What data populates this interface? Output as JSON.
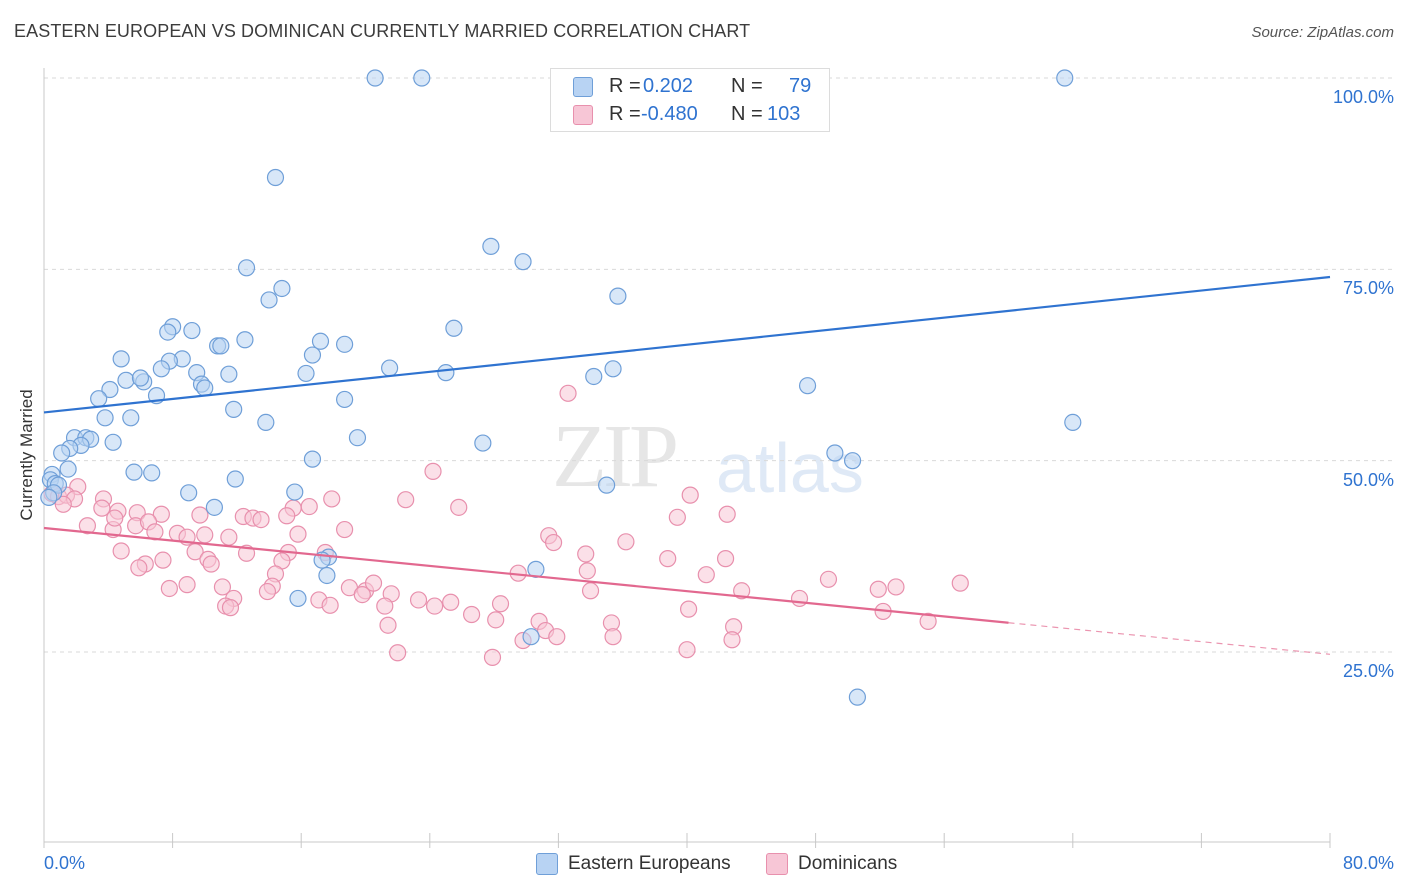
{
  "title": "EASTERN EUROPEAN VS DOMINICAN CURRENTLY MARRIED CORRELATION CHART",
  "source": "Source: ZipAtlas.com",
  "watermark": {
    "zip": "ZIP",
    "atlas": "atlas"
  },
  "legend_box": {
    "rows": [
      {
        "r_label": "R =",
        "r_value": "0.202",
        "n_label": "N =",
        "n_value": "79"
      },
      {
        "r_label": "R =",
        "r_value": "-0.480",
        "n_label": "N =",
        "n_value": "103"
      }
    ]
  },
  "colors": {
    "blue_fill": "#b8d3f3",
    "blue_stroke": "#6f9fd8",
    "blue_line": "#2f73d0",
    "pink_fill": "#f7c6d6",
    "pink_stroke": "#e890ad",
    "pink_line": "#e2688f",
    "grid": "#d9d9d9",
    "label_blue": "#2f73d0"
  },
  "chart_data": {
    "type": "scatter",
    "title": "EASTERN EUROPEAN VS DOMINICAN CURRENTLY MARRIED CORRELATION CHART",
    "xlabel": "",
    "ylabel": "Currently Married",
    "xlim": [
      0,
      80
    ],
    "ylim": [
      0,
      105
    ],
    "x_tick_labels": [
      "0.0%",
      "80.0%"
    ],
    "y_ticks": [
      25,
      50,
      75,
      100
    ],
    "y_tick_labels": [
      "25.0%",
      "50.0%",
      "75.0%",
      "100.0%"
    ],
    "grid": true,
    "legend_position": "bottom",
    "series": [
      {
        "name": "Eastern Europeans",
        "r": 0.202,
        "n": 79,
        "trend": {
          "x": [
            0,
            80
          ],
          "y": [
            56.3,
            74.0
          ],
          "solid_until": 80
        },
        "points": [
          [
            20.6,
            100
          ],
          [
            23.5,
            100
          ],
          [
            63.5,
            100
          ],
          [
            14.4,
            87.0
          ],
          [
            27.8,
            78.0
          ],
          [
            29.8,
            76.0
          ],
          [
            12.6,
            75.2
          ],
          [
            14.8,
            72.5
          ],
          [
            14.0,
            71.0
          ],
          [
            35.7,
            71.5
          ],
          [
            8.0,
            67.5
          ],
          [
            7.7,
            66.8
          ],
          [
            9.2,
            67.0
          ],
          [
            25.5,
            67.3
          ],
          [
            12.5,
            65.8
          ],
          [
            17.2,
            65.6
          ],
          [
            18.7,
            65.2
          ],
          [
            10.8,
            65.0
          ],
          [
            11.0,
            65.0
          ],
          [
            16.7,
            63.8
          ],
          [
            8.6,
            63.3
          ],
          [
            7.8,
            63.0
          ],
          [
            4.8,
            63.3
          ],
          [
            7.3,
            62.0
          ],
          [
            21.5,
            62.1
          ],
          [
            35.4,
            62.0
          ],
          [
            9.5,
            61.5
          ],
          [
            11.5,
            61.3
          ],
          [
            16.3,
            61.4
          ],
          [
            25.0,
            61.5
          ],
          [
            34.2,
            61.0
          ],
          [
            5.1,
            60.5
          ],
          [
            6.2,
            60.3
          ],
          [
            6.0,
            60.8
          ],
          [
            9.8,
            60.0
          ],
          [
            10.0,
            59.5
          ],
          [
            4.1,
            59.3
          ],
          [
            3.4,
            58.1
          ],
          [
            7.0,
            58.5
          ],
          [
            18.7,
            58.0
          ],
          [
            47.5,
            59.8
          ],
          [
            11.8,
            56.7
          ],
          [
            3.8,
            55.6
          ],
          [
            5.4,
            55.6
          ],
          [
            13.8,
            55.0
          ],
          [
            64.0,
            55.0
          ],
          [
            1.9,
            53.0
          ],
          [
            2.6,
            53.0
          ],
          [
            2.9,
            52.8
          ],
          [
            4.3,
            52.4
          ],
          [
            19.5,
            53.0
          ],
          [
            27.3,
            52.3
          ],
          [
            2.3,
            52.0
          ],
          [
            1.6,
            51.6
          ],
          [
            1.1,
            51.0
          ],
          [
            49.2,
            51.0
          ],
          [
            16.7,
            50.2
          ],
          [
            50.3,
            50.0
          ],
          [
            5.6,
            48.5
          ],
          [
            6.7,
            48.4
          ],
          [
            1.5,
            48.9
          ],
          [
            11.9,
            47.6
          ],
          [
            0.5,
            48.2
          ],
          [
            0.4,
            47.5
          ],
          [
            0.7,
            47.0
          ],
          [
            0.9,
            46.8
          ],
          [
            0.6,
            45.8
          ],
          [
            0.3,
            45.2
          ],
          [
            9.0,
            45.8
          ],
          [
            15.6,
            45.9
          ],
          [
            35.0,
            46.8
          ],
          [
            10.6,
            43.9
          ],
          [
            17.7,
            37.4
          ],
          [
            17.6,
            35.0
          ],
          [
            30.6,
            35.8
          ],
          [
            15.8,
            32.0
          ],
          [
            30.3,
            27.0
          ],
          [
            50.6,
            19.1
          ],
          [
            17.3,
            37.0
          ]
        ]
      },
      {
        "name": "Dominicans",
        "r": -0.48,
        "n": 103,
        "trend": {
          "x": [
            0,
            80
          ],
          "y": [
            41.2,
            24.7
          ],
          "solid_until": 60
        },
        "points": [
          [
            32.6,
            58.8
          ],
          [
            24.2,
            48.6
          ],
          [
            2.1,
            46.6
          ],
          [
            0.5,
            45.7
          ],
          [
            0.9,
            45.3
          ],
          [
            1.4,
            45.5
          ],
          [
            1.9,
            45.0
          ],
          [
            3.7,
            45.0
          ],
          [
            1.2,
            44.3
          ],
          [
            17.9,
            45.0
          ],
          [
            22.5,
            44.9
          ],
          [
            16.5,
            44.0
          ],
          [
            15.5,
            43.8
          ],
          [
            3.6,
            43.8
          ],
          [
            4.6,
            43.4
          ],
          [
            5.8,
            43.2
          ],
          [
            7.3,
            43.0
          ],
          [
            9.7,
            42.9
          ],
          [
            12.4,
            42.7
          ],
          [
            13.0,
            42.5
          ],
          [
            13.5,
            42.3
          ],
          [
            15.1,
            42.8
          ],
          [
            25.8,
            43.9
          ],
          [
            39.4,
            42.6
          ],
          [
            2.7,
            41.5
          ],
          [
            4.3,
            41.0
          ],
          [
            5.7,
            41.5
          ],
          [
            6.5,
            42.0
          ],
          [
            6.9,
            40.7
          ],
          [
            8.3,
            40.5
          ],
          [
            8.9,
            40.0
          ],
          [
            10.0,
            40.3
          ],
          [
            11.5,
            40.0
          ],
          [
            15.8,
            40.4
          ],
          [
            18.7,
            41.0
          ],
          [
            31.4,
            40.2
          ],
          [
            31.7,
            39.3
          ],
          [
            36.2,
            39.4
          ],
          [
            4.8,
            38.2
          ],
          [
            9.4,
            38.1
          ],
          [
            12.6,
            37.9
          ],
          [
            15.2,
            38.0
          ],
          [
            17.5,
            38.0
          ],
          [
            33.7,
            37.8
          ],
          [
            38.8,
            37.2
          ],
          [
            42.4,
            37.2
          ],
          [
            7.4,
            37.0
          ],
          [
            10.2,
            37.1
          ],
          [
            6.3,
            36.5
          ],
          [
            10.4,
            36.5
          ],
          [
            5.9,
            36.0
          ],
          [
            14.8,
            36.9
          ],
          [
            33.8,
            35.6
          ],
          [
            29.5,
            35.3
          ],
          [
            41.2,
            35.1
          ],
          [
            14.4,
            35.2
          ],
          [
            14.2,
            33.6
          ],
          [
            8.9,
            33.8
          ],
          [
            7.8,
            33.3
          ],
          [
            11.1,
            33.5
          ],
          [
            13.9,
            32.9
          ],
          [
            19.0,
            33.4
          ],
          [
            20.0,
            33.0
          ],
          [
            20.5,
            34.0
          ],
          [
            19.8,
            32.5
          ],
          [
            21.6,
            32.6
          ],
          [
            34.0,
            33.0
          ],
          [
            43.4,
            33.0
          ],
          [
            48.8,
            34.5
          ],
          [
            51.9,
            33.2
          ],
          [
            53.0,
            33.5
          ],
          [
            57.0,
            34.0
          ],
          [
            11.8,
            32.0
          ],
          [
            17.1,
            31.8
          ],
          [
            23.3,
            31.8
          ],
          [
            25.3,
            31.5
          ],
          [
            28.4,
            31.3
          ],
          [
            17.8,
            31.1
          ],
          [
            21.2,
            31.0
          ],
          [
            11.3,
            31.0
          ],
          [
            11.6,
            30.8
          ],
          [
            24.3,
            31.0
          ],
          [
            40.1,
            30.6
          ],
          [
            52.2,
            30.3
          ],
          [
            26.6,
            29.9
          ],
          [
            28.1,
            29.2
          ],
          [
            30.8,
            29.0
          ],
          [
            35.3,
            28.8
          ],
          [
            42.9,
            28.3
          ],
          [
            21.4,
            28.5
          ],
          [
            31.2,
            27.8
          ],
          [
            35.4,
            27.0
          ],
          [
            31.9,
            27.0
          ],
          [
            29.8,
            26.5
          ],
          [
            42.8,
            26.6
          ],
          [
            40.0,
            25.3
          ],
          [
            22.0,
            24.9
          ],
          [
            27.9,
            24.3
          ],
          [
            40.2,
            45.5
          ],
          [
            42.5,
            43.0
          ],
          [
            47.0,
            32.0
          ],
          [
            55.0,
            29.0
          ],
          [
            4.4,
            42.5
          ]
        ]
      }
    ]
  }
}
